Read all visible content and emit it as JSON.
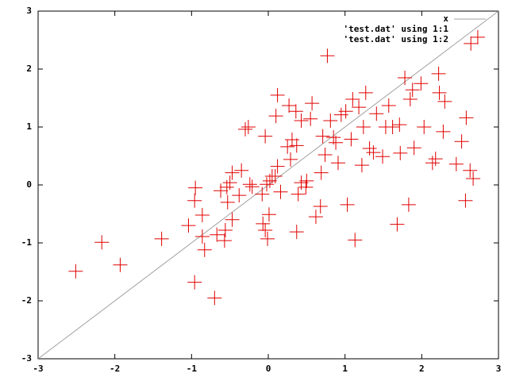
{
  "chart_data": {
    "type": "scatter",
    "xlim": [
      -3,
      3
    ],
    "ylim": [
      -3,
      3
    ],
    "xticks": [
      -3,
      -2,
      -1,
      0,
      1,
      2,
      3
    ],
    "yticks": [
      -3,
      -2,
      -1,
      0,
      1,
      2,
      3
    ],
    "grid": false,
    "legend": "top-right",
    "series": [
      {
        "name": "x",
        "type": "line",
        "color": "#a0a0a0",
        "x": [
          -3,
          3
        ],
        "values": [
          -3,
          3
        ]
      },
      {
        "name": "'test.dat' using 1:1",
        "type": "scatter",
        "x": [],
        "values": []
      },
      {
        "name": "'test.dat' using 1:2",
        "type": "scatter",
        "color": "#e00000",
        "x": [
          -2.51,
          -2.17,
          -1.93,
          -1.39,
          -0.95,
          -0.96,
          -0.96,
          -1.04,
          -0.86,
          -0.86,
          -0.83,
          -0.7,
          -0.67,
          -0.62,
          -0.56,
          -0.57,
          -0.53,
          -0.47,
          -0.54,
          -0.5,
          -0.47,
          -0.38,
          -0.35,
          -0.24,
          -0.21,
          -0.3,
          -0.26,
          -0.07,
          -0.04,
          -0.08,
          -0.04,
          -0.01,
          0.01,
          -0.02,
          0.02,
          0.05,
          0.09,
          0.12,
          0.1,
          0.12,
          0.16,
          0.25,
          0.29,
          0.31,
          0.37,
          0.27,
          0.36,
          0.37,
          0.39,
          0.43,
          0.5,
          0.49,
          0.43,
          0.55,
          0.57,
          0.62,
          0.68,
          0.69,
          0.71,
          0.74,
          0.77,
          0.81,
          0.85,
          0.88,
          0.91,
          0.95,
          1.01,
          1.03,
          1.08,
          1.1,
          1.13,
          1.18,
          1.24,
          1.22,
          1.27,
          1.32,
          1.37,
          1.41,
          1.49,
          1.53,
          1.57,
          1.62,
          1.68,
          1.71,
          1.72,
          1.78,
          1.83,
          1.85,
          1.88,
          1.9,
          1.99,
          2.03,
          2.14,
          2.18,
          2.22,
          2.23,
          2.3,
          2.28,
          2.45,
          2.52,
          2.57,
          2.58,
          2.63,
          2.64,
          2.67,
          2.73
        ],
        "values": [
          -1.49,
          -0.99,
          -1.38,
          -0.93,
          -0.05,
          -0.27,
          -1.68,
          -0.7,
          -0.52,
          -0.89,
          -1.12,
          -1.95,
          -0.86,
          -0.1,
          -0.78,
          -0.96,
          -0.3,
          -0.6,
          -0.04,
          0.04,
          0.21,
          -0.18,
          0.25,
          0.01,
          -0.03,
          0.96,
          1.0,
          -0.67,
          0.84,
          -0.16,
          -0.78,
          -0.93,
          -0.51,
          0.01,
          0.07,
          0.15,
          0.15,
          0.32,
          1.19,
          1.55,
          -0.12,
          0.66,
          0.44,
          0.78,
          0.68,
          1.37,
          1.27,
          -0.81,
          -0.16,
          0.04,
          0.07,
          -0.04,
          1.11,
          1.14,
          1.41,
          -0.55,
          -0.37,
          0.21,
          0.84,
          0.52,
          2.23,
          1.11,
          0.82,
          0.73,
          0.38,
          1.21,
          1.27,
          -0.34,
          0.79,
          1.48,
          -0.95,
          1.34,
          1.0,
          0.34,
          1.59,
          0.63,
          0.56,
          1.23,
          0.49,
          1.0,
          1.37,
          1.0,
          -0.68,
          1.04,
          0.55,
          1.85,
          -0.34,
          1.48,
          1.64,
          0.64,
          1.75,
          1.0,
          0.38,
          0.45,
          1.92,
          1.59,
          1.44,
          0.92,
          0.36,
          0.75,
          -0.27,
          1.16,
          0.25,
          2.44,
          0.11,
          2.55
        ]
      }
    ]
  }
}
